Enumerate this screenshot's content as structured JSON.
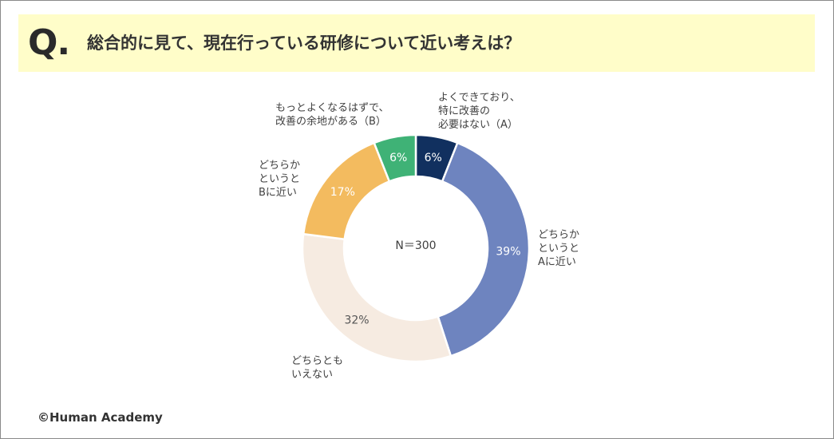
{
  "header": {
    "mark": "Q.",
    "question": "総合的に見て、現在行っている研修について近い考えは？"
  },
  "footer": {
    "copyright": "©Human Academy"
  },
  "chart_data": {
    "type": "donut",
    "title": "総合的に見て、現在行っている研修について近い考えは？",
    "center_label": "N＝300",
    "n": 300,
    "slices": [
      {
        "id": "a",
        "label_lines": [
          "よくできており、",
          "特に改善の",
          "必要はない（A）"
        ],
        "value": 6,
        "data_label": "6%",
        "color": "#11305f",
        "label_color": "#ffffff"
      },
      {
        "id": "lean-a",
        "label_lines": [
          "どちらか",
          "というと",
          "Aに近い"
        ],
        "value": 39,
        "data_label": "39%",
        "color": "#6e84bf",
        "label_color": "#ffffff"
      },
      {
        "id": "neither",
        "label_lines": [
          "どちらとも",
          "いえない"
        ],
        "value": 32,
        "data_label": "32%",
        "color": "#f6ebe1",
        "label_color": "#555555"
      },
      {
        "id": "lean-b",
        "label_lines": [
          "どちらか",
          "というと",
          "Bに近い"
        ],
        "value": 17,
        "data_label": "17%",
        "color": "#f3bb5f",
        "label_color": "#ffffff"
      },
      {
        "id": "b",
        "label_lines": [
          "もっとよくなるはずで、",
          "改善の余地がある（B）"
        ],
        "value": 6,
        "data_label": "6%",
        "color": "#3fb276",
        "label_color": "#ffffff"
      }
    ]
  }
}
